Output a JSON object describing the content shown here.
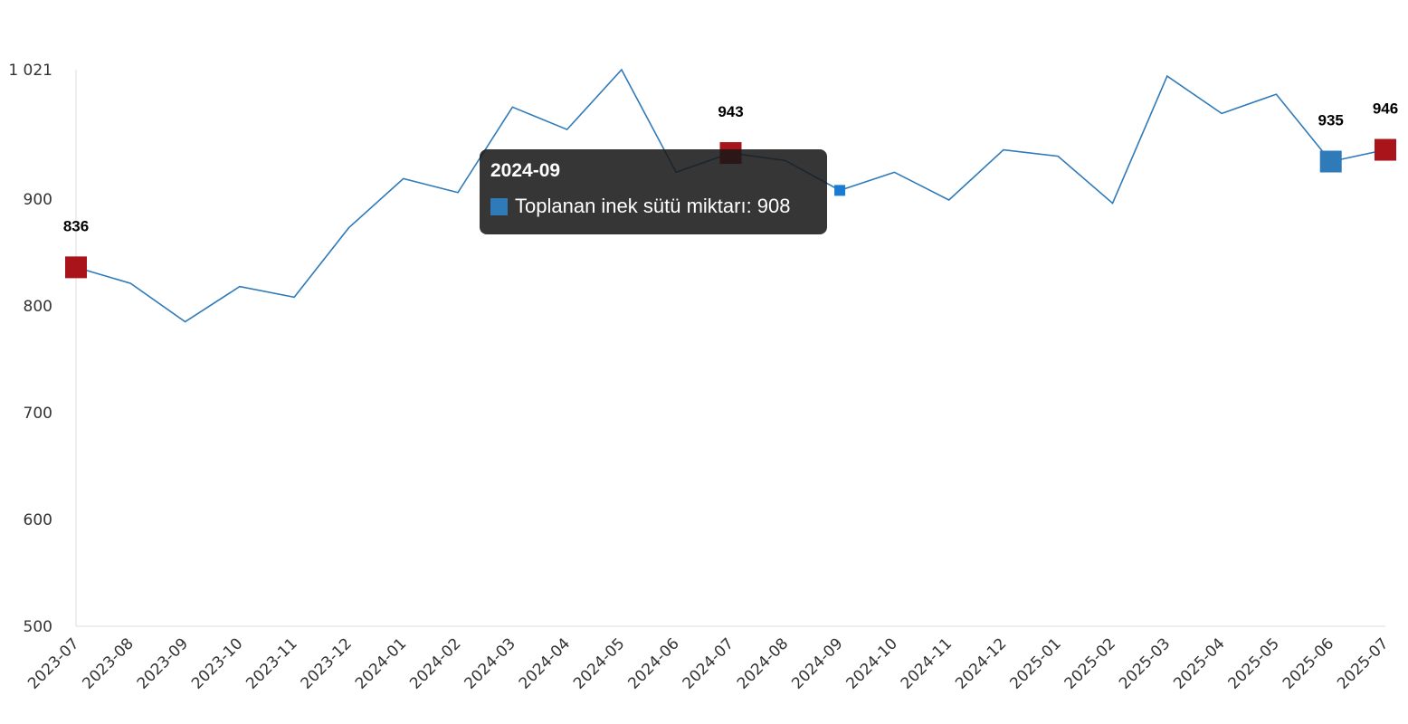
{
  "chart_data": {
    "type": "line",
    "categories": [
      "2023-07",
      "2023-08",
      "2023-09",
      "2023-10",
      "2023-11",
      "2023-12",
      "2024-01",
      "2024-02",
      "2024-03",
      "2024-04",
      "2024-05",
      "2024-06",
      "2024-07",
      "2024-08",
      "2024-09",
      "2024-10",
      "2024-11",
      "2024-12",
      "2025-01",
      "2025-02",
      "2025-03",
      "2025-04",
      "2025-05",
      "2025-06",
      "2025-07"
    ],
    "series": [
      {
        "name": "Toplanan inek sütü miktarı",
        "values": [
          836,
          821,
          785,
          818,
          808,
          873,
          919,
          906,
          986,
          965,
          1021,
          925,
          943,
          936,
          908,
          925,
          899,
          946,
          940,
          896,
          1015,
          980,
          998,
          935,
          946
        ],
        "color": "#2f7ab9"
      }
    ],
    "data_labels": [
      {
        "category": "2023-07",
        "text": "836",
        "marker_color": "#a8141a"
      },
      {
        "category": "2024-07",
        "text": "943",
        "marker_color": "#a8141a"
      },
      {
        "category": "2025-06",
        "text": "935",
        "marker_color": "#2f7ab9"
      },
      {
        "category": "2025-07",
        "text": "946",
        "marker_color": "#a8141a"
      }
    ],
    "yticks": [
      500,
      600,
      700,
      800,
      900,
      1021
    ],
    "ytick_labels": [
      "500",
      "600",
      "700",
      "800",
      "900",
      "1 021"
    ],
    "ylim": [
      500,
      1021
    ],
    "grid": false,
    "legend": "none"
  },
  "tooltip": {
    "title": "2024-09",
    "series_label": "Toplanan inek sütü miktarı: 908",
    "category": "2024-09",
    "swatch_color": "#2f7ab9"
  }
}
